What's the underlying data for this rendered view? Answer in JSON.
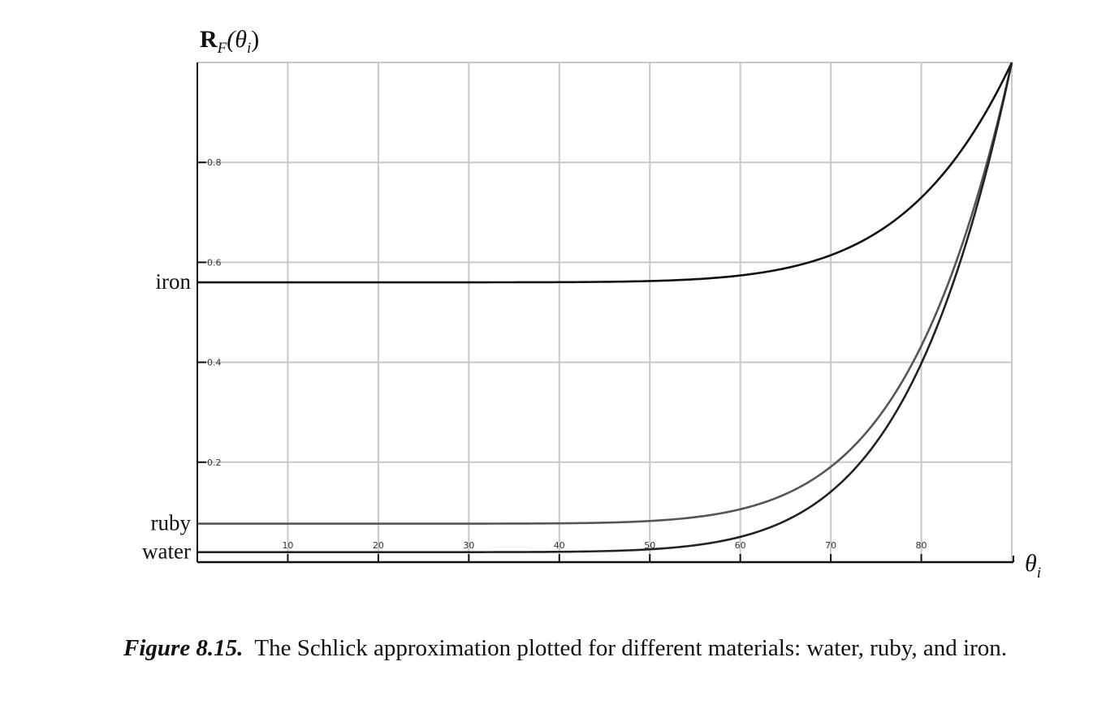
{
  "chart_data": {
    "type": "line",
    "ylabel": {
      "main": "R",
      "sub1": "F",
      "mid": "(θ",
      "sub2": "i",
      "end": ")"
    },
    "xlabel": {
      "main": "θ",
      "sub": "i"
    },
    "xlim": [
      0,
      90
    ],
    "ylim": [
      0,
      1
    ],
    "x_ticks": [
      10,
      20,
      30,
      40,
      50,
      60,
      70,
      80
    ],
    "y_ticks": [
      0.2,
      0.4,
      0.6,
      0.8
    ],
    "y_tick_labels": [
      "0.2",
      "0.4",
      "0.6",
      "0.8"
    ],
    "grid": true,
    "series": [
      {
        "name": "iron",
        "f0": 0.56,
        "color": "#111111"
      },
      {
        "name": "ruby",
        "f0": 0.077,
        "color": "#555555"
      },
      {
        "name": "water",
        "f0": 0.02,
        "color": "#222222"
      }
    ]
  },
  "caption": {
    "label": "Figure 8.15.",
    "text": "The Schlick approximation plotted for different materials: water, ruby, and iron."
  }
}
